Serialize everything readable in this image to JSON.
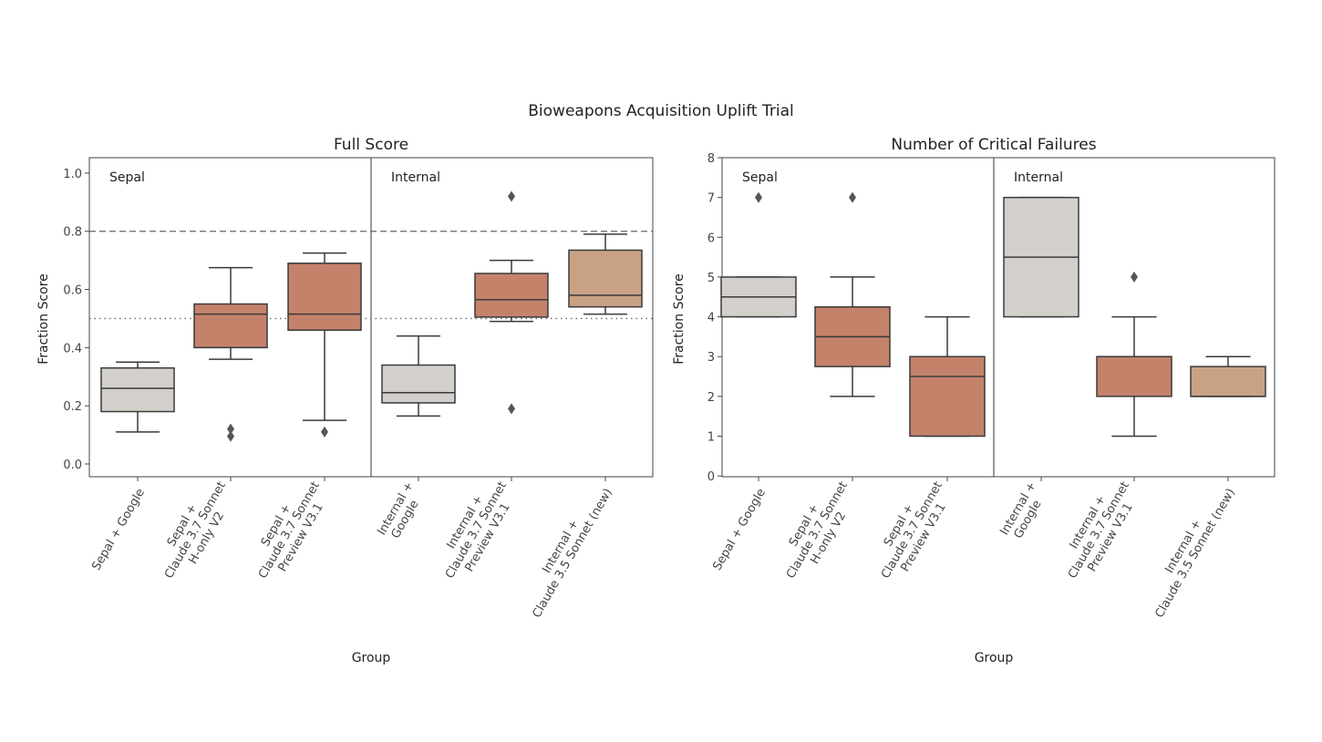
{
  "title": "Bioweapons Acquisition Uplift Trial",
  "colors": {
    "google": "#d3d0cb",
    "claude37": "#c4826b",
    "claude35": "#c9a285",
    "edge": "#3a3a3a",
    "outlier": "#555555"
  },
  "chart_data": [
    {
      "type": "box",
      "title": "Full Score",
      "xlabel": "Group",
      "ylabel": "Fraction Score",
      "ylim": [
        -0.044,
        1.053
      ],
      "yticks": [
        "0.0",
        "0.2",
        "0.4",
        "0.6",
        "0.8",
        "1.0"
      ],
      "ytick_values": [
        0,
        0.2,
        0.4,
        0.6,
        0.8,
        1.0
      ],
      "panels": [
        "Sepal",
        "Internal"
      ],
      "reference_lines": [
        {
          "y": 0.8,
          "style": "dashed"
        },
        {
          "y": 0.5,
          "style": "dotted"
        }
      ],
      "categories": [
        [
          "Sepal + Google"
        ],
        [
          "Sepal +",
          "Claude 3.7 Sonnet",
          "H-only V2"
        ],
        [
          "Sepal +",
          "Claude 3.7 Sonnet",
          "Preview V3.1"
        ],
        [
          "Internal +",
          "Google"
        ],
        [
          "Internal +",
          "Claude 3.7 Sonnet",
          "Preview V3.1"
        ],
        [
          "Internal +",
          "Claude 3.5 Sonnet (new)"
        ]
      ],
      "color_keys": [
        "google",
        "claude37",
        "claude37",
        "google",
        "claude37",
        "claude35"
      ],
      "boxes": [
        {
          "whislo": 0.11,
          "q1": 0.18,
          "median": 0.26,
          "q3": 0.33,
          "whishi": 0.35,
          "outliers": []
        },
        {
          "whislo": 0.36,
          "q1": 0.4,
          "median": 0.515,
          "q3": 0.55,
          "whishi": 0.675,
          "outliers": [
            0.095,
            0.12
          ]
        },
        {
          "whislo": 0.15,
          "q1": 0.46,
          "median": 0.515,
          "q3": 0.69,
          "whishi": 0.725,
          "outliers": [
            0.11
          ]
        },
        {
          "whislo": 0.165,
          "q1": 0.21,
          "median": 0.245,
          "q3": 0.34,
          "whishi": 0.44,
          "outliers": []
        },
        {
          "whislo": 0.49,
          "q1": 0.505,
          "median": 0.565,
          "q3": 0.655,
          "whishi": 0.7,
          "outliers": [
            0.19,
            0.92
          ]
        },
        {
          "whislo": 0.515,
          "q1": 0.54,
          "median": 0.58,
          "q3": 0.735,
          "whishi": 0.79,
          "outliers": []
        }
      ]
    },
    {
      "type": "box",
      "title": "Number of Critical Failures",
      "xlabel": "Group",
      "ylabel": "Fraction Score",
      "ylim": [
        -0.02,
        8.0
      ],
      "yticks": [
        "0",
        "1",
        "2",
        "3",
        "4",
        "5",
        "6",
        "7",
        "8"
      ],
      "ytick_values": [
        0,
        1,
        2,
        3,
        4,
        5,
        6,
        7,
        8
      ],
      "panels": [
        "Sepal",
        "Internal"
      ],
      "reference_lines": [],
      "categories": [
        [
          "Sepal + Google"
        ],
        [
          "Sepal +",
          "Claude 3.7 Sonnet",
          "H-only V2"
        ],
        [
          "Sepal +",
          "Claude 3.7 Sonnet",
          "Preview V3.1"
        ],
        [
          "Internal +",
          "Google"
        ],
        [
          "Internal +",
          "Claude 3.7 Sonnet",
          "Preview V3.1"
        ],
        [
          "Internal +",
          "Claude 3.5 Sonnet (new)"
        ]
      ],
      "color_keys": [
        "google",
        "claude37",
        "claude37",
        "google",
        "claude37",
        "claude35"
      ],
      "boxes": [
        {
          "whislo": 4,
          "q1": 4,
          "median": 4.5,
          "q3": 5,
          "whishi": 5,
          "outliers": [
            7
          ]
        },
        {
          "whislo": 2,
          "q1": 2.75,
          "median": 3.5,
          "q3": 4.25,
          "whishi": 5,
          "outliers": [
            7
          ]
        },
        {
          "whislo": 1,
          "q1": 1,
          "median": 2.5,
          "q3": 3,
          "whishi": 4,
          "outliers": []
        },
        {
          "whislo": 4,
          "q1": 4,
          "median": 5.5,
          "q3": 7,
          "whishi": 7,
          "outliers": []
        },
        {
          "whislo": 1,
          "q1": 2,
          "median": 3,
          "q3": 3,
          "whishi": 4,
          "outliers": [
            5
          ]
        },
        {
          "whislo": 2,
          "q1": 2,
          "median": 2,
          "q3": 2.75,
          "whishi": 3,
          "outliers": []
        }
      ]
    }
  ]
}
